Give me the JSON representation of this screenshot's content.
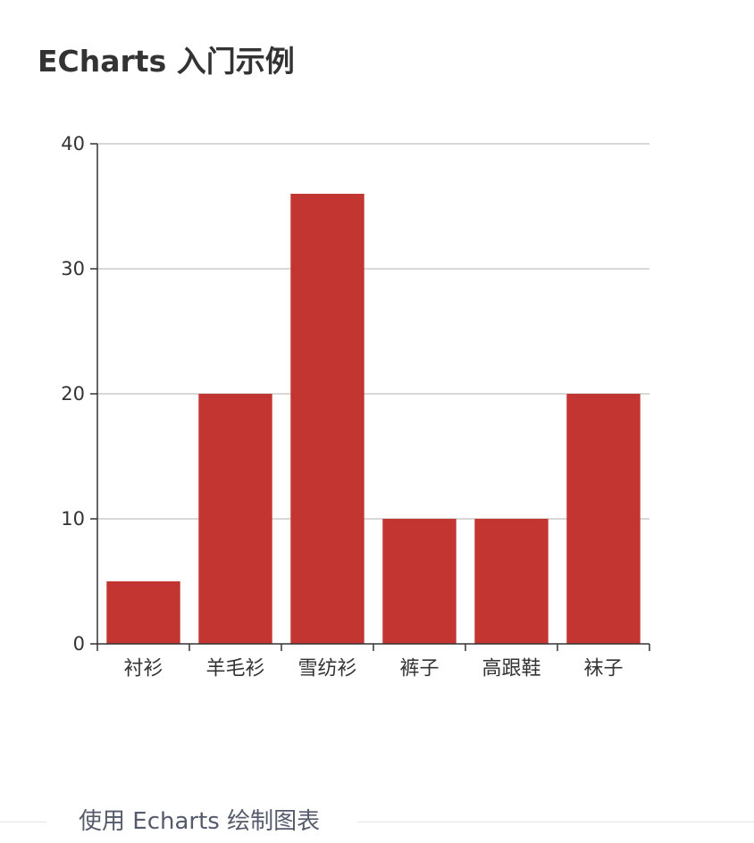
{
  "page": {
    "title": "ECharts 入门示例",
    "footer_text": "使用 Echarts 绘制图表"
  },
  "colors": {
    "bar": "#c23531",
    "axis": "#333333",
    "grid": "#cccccc",
    "label": "#333333"
  },
  "chart_data": {
    "type": "bar",
    "categories": [
      "衬衫",
      "羊毛衫",
      "雪纺衫",
      "裤子",
      "高跟鞋",
      "袜子"
    ],
    "series": [
      {
        "values": [
          5,
          20,
          36,
          10,
          10,
          20
        ]
      }
    ],
    "ylim": [
      0,
      40
    ],
    "yticks": [
      0,
      10,
      20,
      30,
      40
    ],
    "grid": true,
    "legend": "none"
  }
}
